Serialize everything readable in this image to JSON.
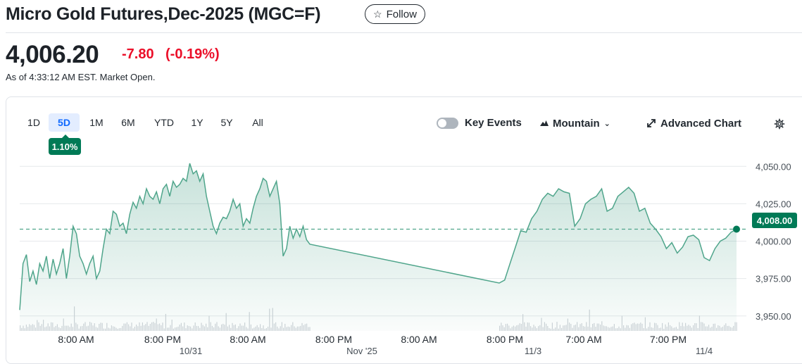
{
  "header": {
    "title": "Micro Gold Futures,Dec-2025 (MGC=F)",
    "follow_label": "Follow",
    "price": "4,006.20",
    "change": "-7.80",
    "change_pct": "(-0.19%)",
    "as_of": "As of 4:33:12 AM EST. Market Open."
  },
  "colors": {
    "up": "#007a56",
    "down": "#eb0f29",
    "accent": "#0f69ff"
  },
  "toolbar": {
    "ranges": [
      "1D",
      "5D",
      "1M",
      "6M",
      "YTD",
      "1Y",
      "5Y",
      "All"
    ],
    "active_range": "5D",
    "range_performance": "1.10%",
    "key_events_label": "Key Events",
    "key_events_on": false,
    "chart_style_label": "Mountain",
    "advanced_chart_label": "Advanced Chart",
    "icons": [
      "star-icon",
      "toggle-switch",
      "mountain-icon",
      "chevron-down-icon",
      "expand-arrow-icon",
      "gear-icon"
    ]
  },
  "chart_data": {
    "type": "area",
    "ylim": [
      3940,
      4060
    ],
    "y_ticks": [
      "4,050.00",
      "4,025.00",
      "4,000.00",
      "3,975.00",
      "3,950.00"
    ],
    "y_tick_values": [
      4050,
      4025,
      4000,
      3975,
      3950
    ],
    "reference_line": 4008,
    "last_value_label": "4,008.00",
    "grid": true,
    "x_tick_labels": [
      "8:00 AM",
      "8:00 PM",
      "8:00 AM",
      "8:00 PM",
      "8:00 AM",
      "8:00 PM",
      "7:00 AM",
      "7:00 PM"
    ],
    "date_labels": [
      "10/31",
      "Nov '25",
      "11/3",
      "11/4"
    ],
    "series": [
      {
        "values": [
          3954,
          3985,
          3991,
          3973,
          3980,
          3971,
          3985,
          3980,
          3990,
          3975,
          3988,
          3978,
          3985,
          3995,
          3975,
          3990,
          4010,
          4005,
          3990,
          3985,
          3978,
          3985,
          3990,
          3975,
          3980,
          3995,
          4008,
          4005,
          4020,
          4018,
          4010,
          4012,
          4005,
          4018,
          4026,
          4022,
          4030,
          4025,
          4035,
          4030,
          4028,
          4033,
          4025,
          4035,
          4038,
          4030,
          4040,
          4036,
          4038,
          4042,
          4040,
          4052,
          4045,
          4047,
          4040,
          4045,
          4030,
          4020,
          4010,
          4005,
          4012,
          4016,
          4015,
          4020,
          4028,
          4022,
          4025,
          4010,
          4015,
          4012,
          4022,
          4030,
          4035,
          4042,
          4040,
          4030,
          4035,
          4040,
          4025,
          3990,
          3995,
          4010,
          4002,
          4008,
          4003,
          4010,
          4001,
          3998,
          3972,
          3974,
          3985,
          3996,
          4007,
          4006,
          4015,
          4020,
          4028,
          4032,
          4030,
          4035,
          4033,
          4032,
          4010,
          4015,
          4025,
          4028,
          4030,
          4035,
          4020,
          4022,
          4030,
          4033,
          4036,
          4032,
          4020,
          4022,
          4012,
          4008,
          4003,
          3995,
          3999,
          3992,
          3996,
          4003,
          4004,
          4001,
          3989,
          3987,
          3995,
          4000,
          4002,
          4006,
          4008
        ]
      }
    ]
  }
}
